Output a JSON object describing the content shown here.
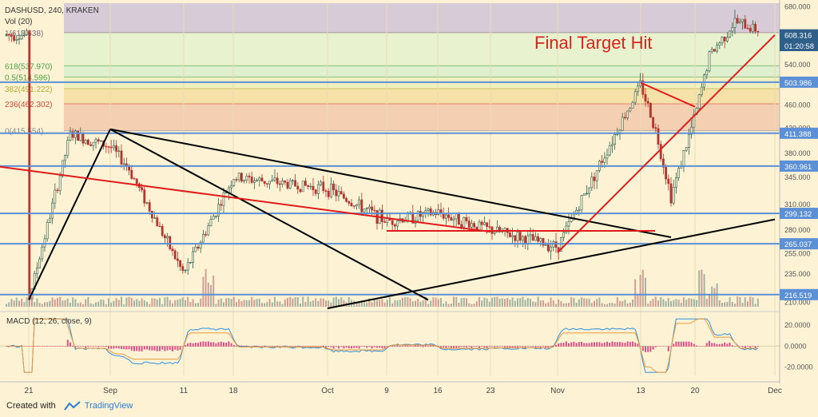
{
  "header": {
    "symbol_line": "DASHUSD, 240, KRAKEN",
    "volume_label": "Vol (20)"
  },
  "annotation": "Final Target Hit",
  "macd_label": "MACD (12, 26, close, 9)",
  "colors": {
    "background": "#fdf3d4",
    "trendline": "#000000",
    "red_trendline": "#e01b1b",
    "horizontal_level": "#5b8fd6",
    "up_candle": "#2e5f4f",
    "down_candle": "#b3342e",
    "macd_line": "#2f8fe0",
    "signal_line": "#e79a3d",
    "histogram": "#e0508a"
  },
  "footer": {
    "created_with": "Created with",
    "brand": "TradingView"
  },
  "chart_data": {
    "type": "candlestick",
    "title": "DASHUSD, 240, KRAKEN",
    "y_scale": "log",
    "ylim": [
      205,
      690
    ],
    "x_tick_labels": [
      "21",
      "Sep",
      "11",
      "18",
      "Oct",
      "9",
      "16",
      "23",
      "Nov",
      "13",
      "20",
      "Dec"
    ],
    "y_tick_labels": [
      "680.000",
      "600.000",
      "540.000",
      "500.000",
      "460.000",
      "420.000",
      "380.000",
      "345.000",
      "310.000",
      "280.000",
      "255.000",
      "235.000",
      "210.000"
    ],
    "fib_levels": [
      {
        "label": "1(613.638)",
        "value": 613.638,
        "fill": "#d6cbd6",
        "text": "#7a6f7a"
      },
      {
        "label": "618(537.970)",
        "value": 537.97,
        "fill": "#e9f2cf",
        "text": "#4aa04a"
      },
      {
        "label": "0.5(514.596)",
        "value": 514.596,
        "fill": "#dff0cf",
        "text": "#4aa04a"
      },
      {
        "label": "382(491.222)",
        "value": 491.222,
        "fill": "#f1efc0",
        "text": "#b0a92a"
      },
      {
        "label": "236(462.302)",
        "value": 462.302,
        "fill": "#f6e2a9",
        "text": "#d24a3a"
      },
      {
        "label": "0(415.554)",
        "value": 415.554,
        "fill": "#f5cfb1",
        "text": "#8a8a8a"
      }
    ],
    "horizontal_levels": [
      503.986,
      411.388,
      360.961,
      299.132,
      265.037,
      216.519
    ],
    "price_labels": [
      {
        "text": "608.316",
        "value": 608.316
      },
      {
        "text": "01:20:58",
        "value": 583
      },
      {
        "text": "503.986",
        "value": 503.986
      },
      {
        "text": "411.388",
        "value": 411.388
      },
      {
        "text": "360.961",
        "value": 360.961
      },
      {
        "text": "299.132",
        "value": 299.132
      },
      {
        "text": "265.037",
        "value": 265.037
      },
      {
        "text": "216.519",
        "value": 216.519
      }
    ],
    "trendlines_black": [
      {
        "from": [
          "21",
          212
        ],
        "to": [
          "Sep",
          418
        ]
      },
      {
        "from": [
          "Sep",
          418
        ],
        "to": [
          "Nov+",
          272
        ]
      },
      {
        "from": [
          "Sep",
          418
        ],
        "to": [
          "Oct+",
          212
        ]
      },
      {
        "from": [
          "Oct",
          205
        ],
        "to": [
          "Dec",
          292
        ]
      }
    ],
    "trendlines_red": [
      {
        "from": [
          "18+",
          360
        ],
        "to": [
          "23",
          278
        ]
      },
      {
        "from": [
          "9",
          279
        ],
        "to": [
          "13+",
          279
        ]
      },
      {
        "from": [
          "Nov",
          256
        ],
        "to": [
          "Dec",
          608
        ]
      },
      {
        "from": [
          "13",
          503
        ],
        "to": [
          "20",
          457
        ]
      }
    ],
    "price_series_approx": [
      {
        "x": "21",
        "y": 212
      },
      {
        "x": "Sep-",
        "y": 410
      },
      {
        "x": "Sep",
        "y": 390
      },
      {
        "x": "Sep+",
        "y": 360
      },
      {
        "x": "11",
        "y": 235
      },
      {
        "x": "18",
        "y": 345
      },
      {
        "x": "Oct",
        "y": 330
      },
      {
        "x": "9",
        "y": 290
      },
      {
        "x": "16",
        "y": 300
      },
      {
        "x": "23",
        "y": 280
      },
      {
        "x": "Nov",
        "y": 262
      },
      {
        "x": "Nov+",
        "y": 320
      },
      {
        "x": "13",
        "y": 500
      },
      {
        "x": "13+",
        "y": 420
      },
      {
        "x": "20",
        "y": 440
      },
      {
        "x": "20+",
        "y": 560
      },
      {
        "x": "Dec-",
        "y": 640
      },
      {
        "x": "Dec",
        "y": 608
      }
    ],
    "macd": {
      "ylim": [
        -28,
        30
      ],
      "tick_labels": [
        "20.0000",
        "0.0000",
        "-20.0000"
      ],
      "tick_values": [
        20,
        0,
        -20
      ]
    }
  }
}
